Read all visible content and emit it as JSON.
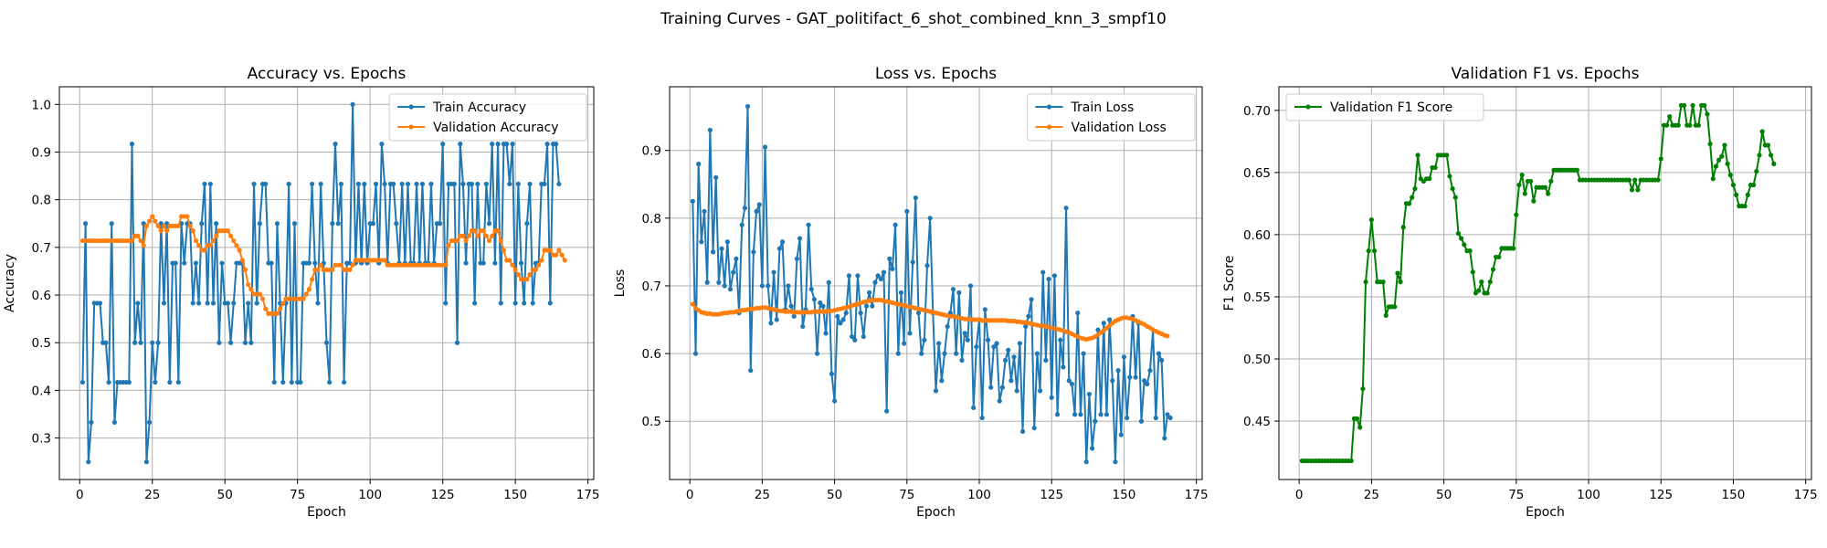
{
  "figure": {
    "title": "Training Curves - GAT_politifact_6_shot_combined_knn_3_smpf10"
  },
  "chart_data": [
    {
      "type": "line",
      "title": "Accuracy vs. Epochs",
      "xlabel": "Epoch",
      "ylabel": "Accuracy",
      "xlim": [
        -7,
        177
      ],
      "ylim": [
        0.213,
        1.037
      ],
      "xticks": [
        0,
        25,
        50,
        75,
        100,
        125,
        150,
        175
      ],
      "yticks": [
        0.3,
        0.4,
        0.5,
        0.6,
        0.7,
        0.8,
        0.9,
        1.0
      ],
      "ytick_labels": [
        "0.3",
        "0.4",
        "0.5",
        "0.6",
        "0.7",
        "0.8",
        "0.9",
        "1.0"
      ],
      "grid": true,
      "legend": "upper right",
      "series": [
        {
          "name": "Train Accuracy",
          "color": "#1f77b4",
          "x_start": 1,
          "values": [
            0.417,
            0.75,
            0.25,
            0.333,
            0.583,
            0.583,
            0.583,
            0.5,
            0.5,
            0.417,
            0.75,
            0.333,
            0.417,
            0.417,
            0.417,
            0.417,
            0.417,
            0.917,
            0.5,
            0.583,
            0.5,
            0.75,
            0.25,
            0.333,
            0.5,
            0.417,
            0.5,
            0.75,
            0.583,
            0.75,
            0.417,
            0.667,
            0.667,
            0.417,
            0.75,
            0.667,
            0.75,
            0.75,
            0.583,
            0.667,
            0.583,
            0.75,
            0.833,
            0.583,
            0.833,
            0.583,
            0.75,
            0.5,
            0.667,
            0.583,
            0.583,
            0.5,
            0.583,
            0.667,
            0.667,
            0.667,
            0.5,
            0.583,
            0.5,
            0.833,
            0.583,
            0.75,
            0.833,
            0.833,
            0.667,
            0.667,
            0.417,
            0.75,
            0.583,
            0.417,
            0.583,
            0.833,
            0.417,
            0.75,
            0.417,
            0.417,
            0.667,
            0.667,
            0.667,
            0.833,
            0.667,
            0.583,
            0.833,
            0.667,
            0.5,
            0.417,
            0.75,
            0.917,
            0.75,
            0.833,
            0.417,
            0.667,
            0.667,
            1.0,
            0.667,
            0.833,
            0.667,
            0.833,
            0.667,
            0.75,
            0.75,
            0.833,
            0.667,
            0.917,
            0.833,
            0.667,
            0.833,
            0.833,
            0.75,
            0.667,
            0.833,
            0.667,
            0.833,
            0.667,
            0.667,
            0.833,
            0.667,
            0.833,
            0.667,
            0.667,
            0.833,
            0.667,
            0.75,
            0.75,
            0.917,
            0.583,
            0.833,
            0.833,
            0.833,
            0.5,
            0.917,
            0.833,
            0.667,
            0.833,
            0.833,
            0.583,
            0.833,
            0.667,
            0.667,
            0.833,
            0.75,
            0.917,
            0.667,
            0.917,
            0.583,
            0.917,
            0.917,
            0.833,
            0.917,
            0.583,
            0.833,
            0.667,
            0.583,
            0.75,
            0.833,
            0.583,
            0.667,
            0.667,
            0.833,
            0.833,
            0.917,
            0.583,
            0.917,
            0.917,
            0.833
          ]
        },
        {
          "name": "Validation Accuracy",
          "color": "#ff7f0e",
          "x_start": 1,
          "values": [
            0.714,
            0.714,
            0.714,
            0.714,
            0.714,
            0.714,
            0.714,
            0.714,
            0.714,
            0.714,
            0.714,
            0.714,
            0.714,
            0.714,
            0.714,
            0.714,
            0.714,
            0.714,
            0.724,
            0.724,
            0.714,
            0.704,
            0.745,
            0.755,
            0.765,
            0.755,
            0.745,
            0.735,
            0.745,
            0.735,
            0.745,
            0.745,
            0.745,
            0.745,
            0.765,
            0.765,
            0.765,
            0.745,
            0.735,
            0.714,
            0.704,
            0.694,
            0.694,
            0.704,
            0.704,
            0.714,
            0.724,
            0.735,
            0.735,
            0.735,
            0.735,
            0.724,
            0.714,
            0.704,
            0.694,
            0.673,
            0.653,
            0.622,
            0.612,
            0.602,
            0.602,
            0.602,
            0.592,
            0.571,
            0.561,
            0.561,
            0.561,
            0.561,
            0.571,
            0.582,
            0.592,
            0.592,
            0.592,
            0.592,
            0.592,
            0.592,
            0.592,
            0.602,
            0.612,
            0.633,
            0.653,
            0.653,
            0.663,
            0.653,
            0.653,
            0.653,
            0.653,
            0.663,
            0.663,
            0.663,
            0.653,
            0.653,
            0.653,
            0.663,
            0.673,
            0.673,
            0.673,
            0.673,
            0.673,
            0.673,
            0.673,
            0.673,
            0.673,
            0.673,
            0.673,
            0.663,
            0.663,
            0.663,
            0.663,
            0.663,
            0.663,
            0.663,
            0.663,
            0.663,
            0.663,
            0.663,
            0.663,
            0.663,
            0.663,
            0.663,
            0.663,
            0.663,
            0.663,
            0.663,
            0.663,
            0.663,
            0.704,
            0.714,
            0.714,
            0.714,
            0.724,
            0.724,
            0.714,
            0.724,
            0.735,
            0.735,
            0.724,
            0.735,
            0.735,
            0.724,
            0.714,
            0.724,
            0.735,
            0.735,
            0.714,
            0.694,
            0.673,
            0.673,
            0.663,
            0.653,
            0.643,
            0.633,
            0.633,
            0.633,
            0.643,
            0.653,
            0.653,
            0.663,
            0.673,
            0.694,
            0.694,
            0.694,
            0.684,
            0.684,
            0.694,
            0.684,
            0.673
          ]
        }
      ]
    },
    {
      "type": "line",
      "title": "Loss vs. Epochs",
      "xlabel": "Epoch",
      "ylabel": "Loss",
      "xlim": [
        -7,
        177
      ],
      "ylim": [
        0.414,
        0.994
      ],
      "xticks": [
        0,
        25,
        50,
        75,
        100,
        125,
        150,
        175
      ],
      "yticks": [
        0.5,
        0.6,
        0.7,
        0.8,
        0.9
      ],
      "ytick_labels": [
        "0.5",
        "0.6",
        "0.7",
        "0.8",
        "0.9"
      ],
      "grid": true,
      "legend": "upper right",
      "series": [
        {
          "name": "Train Loss",
          "color": "#1f77b4",
          "x_start": 1,
          "values": [
            0.825,
            0.6,
            0.88,
            0.765,
            0.81,
            0.705,
            0.93,
            0.75,
            0.86,
            0.705,
            0.755,
            0.7,
            0.765,
            0.695,
            0.72,
            0.74,
            0.66,
            0.79,
            0.815,
            0.965,
            0.575,
            0.75,
            0.81,
            0.82,
            0.7,
            0.905,
            0.7,
            0.645,
            0.72,
            0.65,
            0.755,
            0.765,
            0.665,
            0.7,
            0.67,
            0.655,
            0.74,
            0.77,
            0.64,
            0.665,
            0.79,
            0.695,
            0.68,
            0.6,
            0.675,
            0.67,
            0.63,
            0.705,
            0.57,
            0.53,
            0.655,
            0.645,
            0.65,
            0.66,
            0.715,
            0.625,
            0.62,
            0.715,
            0.66,
            0.625,
            0.67,
            0.69,
            0.67,
            0.705,
            0.715,
            0.71,
            0.72,
            0.515,
            0.74,
            0.725,
            0.79,
            0.6,
            0.69,
            0.615,
            0.81,
            0.63,
            0.735,
            0.83,
            0.66,
            0.6,
            0.62,
            0.73,
            0.8,
            0.66,
            0.545,
            0.615,
            0.56,
            0.6,
            0.64,
            0.66,
            0.695,
            0.6,
            0.69,
            0.59,
            0.63,
            0.62,
            0.7,
            0.52,
            0.61,
            0.65,
            0.505,
            0.665,
            0.62,
            0.55,
            0.61,
            0.615,
            0.53,
            0.55,
            0.59,
            0.605,
            0.56,
            0.595,
            0.545,
            0.615,
            0.485,
            0.64,
            0.655,
            0.68,
            0.49,
            0.6,
            0.545,
            0.72,
            0.59,
            0.71,
            0.535,
            0.715,
            0.51,
            0.62,
            0.58,
            0.815,
            0.56,
            0.555,
            0.51,
            0.66,
            0.51,
            0.6,
            0.44,
            0.54,
            0.46,
            0.5,
            0.635,
            0.51,
            0.645,
            0.51,
            0.65,
            0.56,
            0.44,
            0.575,
            0.48,
            0.595,
            0.505,
            0.565,
            0.655,
            0.565,
            0.645,
            0.5,
            0.56,
            0.555,
            0.575,
            0.635,
            0.505,
            0.6,
            0.59,
            0.475,
            0.51,
            0.505
          ]
        },
        {
          "name": "Validation Loss",
          "color": "#ff7f0e",
          "x_start": 1,
          "values": [
            0.673,
            0.667,
            0.664,
            0.661,
            0.66,
            0.659,
            0.659,
            0.658,
            0.658,
            0.658,
            0.659,
            0.66,
            0.66,
            0.661,
            0.661,
            0.662,
            0.663,
            0.664,
            0.664,
            0.665,
            0.666,
            0.666,
            0.667,
            0.667,
            0.668,
            0.668,
            0.667,
            0.666,
            0.665,
            0.664,
            0.663,
            0.663,
            0.662,
            0.662,
            0.662,
            0.661,
            0.661,
            0.661,
            0.661,
            0.661,
            0.661,
            0.661,
            0.662,
            0.662,
            0.662,
            0.662,
            0.662,
            0.663,
            0.663,
            0.664,
            0.665,
            0.666,
            0.667,
            0.668,
            0.669,
            0.671,
            0.672,
            0.673,
            0.675,
            0.676,
            0.677,
            0.678,
            0.679,
            0.679,
            0.679,
            0.679,
            0.678,
            0.677,
            0.676,
            0.675,
            0.674,
            0.673,
            0.672,
            0.671,
            0.67,
            0.669,
            0.668,
            0.667,
            0.666,
            0.665,
            0.664,
            0.663,
            0.662,
            0.661,
            0.66,
            0.659,
            0.658,
            0.657,
            0.656,
            0.655,
            0.655,
            0.654,
            0.653,
            0.652,
            0.651,
            0.651,
            0.65,
            0.65,
            0.65,
            0.65,
            0.649,
            0.649,
            0.649,
            0.649,
            0.649,
            0.649,
            0.649,
            0.649,
            0.649,
            0.648,
            0.648,
            0.648,
            0.647,
            0.647,
            0.646,
            0.646,
            0.645,
            0.644,
            0.643,
            0.642,
            0.641,
            0.641,
            0.64,
            0.639,
            0.638,
            0.637,
            0.636,
            0.635,
            0.634,
            0.632,
            0.631,
            0.629,
            0.627,
            0.625,
            0.623,
            0.622,
            0.621,
            0.622,
            0.623,
            0.625,
            0.628,
            0.631,
            0.634,
            0.638,
            0.641,
            0.645,
            0.648,
            0.65,
            0.652,
            0.653,
            0.653,
            0.652,
            0.651,
            0.649,
            0.647,
            0.645,
            0.643,
            0.64,
            0.638,
            0.635,
            0.633,
            0.631,
            0.629,
            0.627,
            0.626
          ]
        }
      ]
    },
    {
      "type": "line",
      "title": "Validation F1 vs. Epochs",
      "xlabel": "Epoch",
      "ylabel": "F1 Score",
      "xlim": [
        -7,
        177
      ],
      "ylim": [
        0.403,
        0.719
      ],
      "xticks": [
        0,
        25,
        50,
        75,
        100,
        125,
        150,
        175
      ],
      "yticks": [
        0.45,
        0.5,
        0.55,
        0.6,
        0.65,
        0.7
      ],
      "ytick_labels": [
        "0.45",
        "0.50",
        "0.55",
        "0.60",
        "0.65",
        "0.70"
      ],
      "grid": true,
      "legend": "upper left",
      "series": [
        {
          "name": "Validation F1 Score",
          "color": "#008000",
          "x_start": 1,
          "values": [
            0.418,
            0.418,
            0.418,
            0.418,
            0.418,
            0.418,
            0.418,
            0.418,
            0.418,
            0.418,
            0.418,
            0.418,
            0.418,
            0.418,
            0.418,
            0.418,
            0.418,
            0.418,
            0.452,
            0.452,
            0.445,
            0.476,
            0.562,
            0.587,
            0.612,
            0.587,
            0.562,
            0.562,
            0.562,
            0.535,
            0.542,
            0.542,
            0.542,
            0.569,
            0.562,
            0.606,
            0.625,
            0.625,
            0.63,
            0.637,
            0.664,
            0.645,
            0.643,
            0.645,
            0.645,
            0.654,
            0.654,
            0.664,
            0.664,
            0.664,
            0.664,
            0.647,
            0.637,
            0.63,
            0.601,
            0.597,
            0.592,
            0.587,
            0.587,
            0.57,
            0.553,
            0.555,
            0.562,
            0.553,
            0.553,
            0.562,
            0.572,
            0.582,
            0.582,
            0.589,
            0.589,
            0.589,
            0.589,
            0.589,
            0.616,
            0.64,
            0.648,
            0.633,
            0.643,
            0.643,
            0.627,
            0.638,
            0.638,
            0.638,
            0.638,
            0.633,
            0.643,
            0.652,
            0.652,
            0.652,
            0.652,
            0.652,
            0.652,
            0.652,
            0.652,
            0.652,
            0.644,
            0.644,
            0.644,
            0.644,
            0.644,
            0.644,
            0.644,
            0.644,
            0.644,
            0.644,
            0.644,
            0.644,
            0.644,
            0.644,
            0.644,
            0.644,
            0.644,
            0.644,
            0.636,
            0.644,
            0.636,
            0.644,
            0.644,
            0.644,
            0.644,
            0.644,
            0.644,
            0.644,
            0.661,
            0.688,
            0.688,
            0.695,
            0.688,
            0.688,
            0.688,
            0.704,
            0.704,
            0.688,
            0.688,
            0.704,
            0.688,
            0.688,
            0.704,
            0.704,
            0.697,
            0.673,
            0.645,
            0.655,
            0.66,
            0.663,
            0.672,
            0.657,
            0.648,
            0.64,
            0.632,
            0.623,
            0.623,
            0.623,
            0.632,
            0.64,
            0.64,
            0.651,
            0.664,
            0.683,
            0.672,
            0.672,
            0.664,
            0.657
          ]
        }
      ]
    }
  ]
}
